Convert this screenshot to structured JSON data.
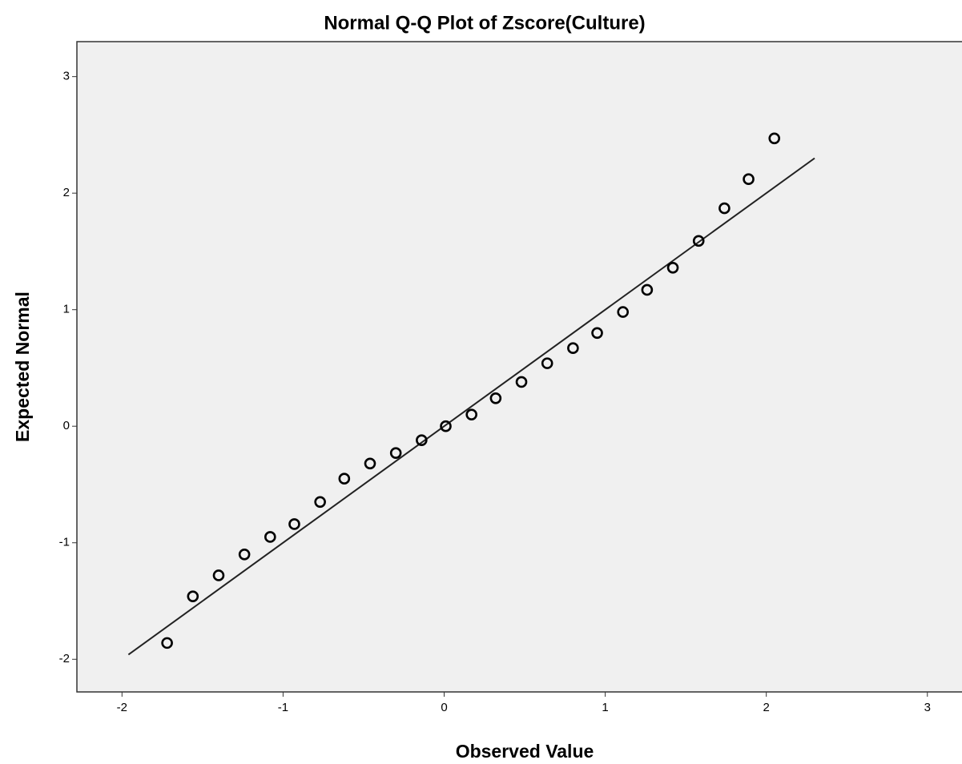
{
  "chart_data": {
    "type": "scatter",
    "title": "Normal Q-Q Plot of Zscore(Culture)",
    "x_label": "Observed Value",
    "y_label": "Expected Normal",
    "x": [
      -1.72,
      -1.56,
      -1.4,
      -1.24,
      -1.08,
      -0.93,
      -0.77,
      -0.62,
      -0.46,
      -0.3,
      -0.14,
      0.01,
      0.17,
      0.32,
      0.48,
      0.64,
      0.8,
      0.95,
      1.11,
      1.26,
      1.42,
      1.58,
      1.74,
      1.89,
      2.05
    ],
    "values": [
      -1.86,
      -1.46,
      -1.28,
      -1.1,
      -0.95,
      -0.84,
      -0.65,
      -0.45,
      -0.32,
      -0.23,
      -0.12,
      0.0,
      0.1,
      0.24,
      0.38,
      0.54,
      0.67,
      0.8,
      0.98,
      1.17,
      1.36,
      1.59,
      1.87,
      2.12,
      2.47
    ],
    "color": "#000000",
    "reference_line": {
      "x": [
        -1.96,
        2.3
      ],
      "y": [
        -1.96,
        2.3
      ]
    },
    "xlim": [
      -2.28,
      3.21
    ],
    "ylim": [
      -2.28,
      3.3
    ],
    "xticks": [
      -2,
      -1,
      0,
      1,
      2,
      3
    ],
    "yticks": [
      -2,
      -1,
      0,
      1,
      2,
      3
    ]
  }
}
